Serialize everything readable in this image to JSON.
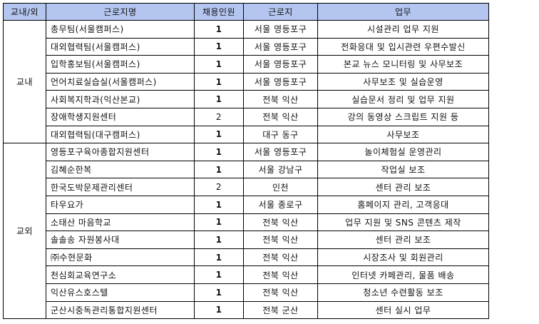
{
  "table": {
    "headers": [
      "교내/외",
      "근로지명",
      "채용인원",
      "근로지",
      "업무"
    ],
    "groups": [
      {
        "label": "교내",
        "rows": [
          {
            "name": "총무팀(서울캠퍼스)",
            "count": "1",
            "location": "서울 영등포구",
            "task": "시설관리 업무 지원"
          },
          {
            "name": "대외협력팀(서울캠퍼스)",
            "count": "1",
            "location": "서울 영등포구",
            "task": "전화응대 및 입시관련 우편수발신"
          },
          {
            "name": "입학홍보팀(서울캠퍼스)",
            "count": "1",
            "location": "서울 영등포구",
            "task": "본교 뉴스 모니터링 및 사무보조"
          },
          {
            "name": "언어치료실습실(서울캠퍼스)",
            "count": "1",
            "location": "서울 영등포구",
            "task": "사무보조 및 실습운영"
          },
          {
            "name": "사회복지학과(익산본교)",
            "count": "1",
            "location": "전북 익산",
            "task": "실습문서 정리 및 업무 지원"
          },
          {
            "name": "장애학생지원센터",
            "count": "2",
            "location": "전북 익산",
            "task": "강의 동영상 스크립트 지원 등"
          },
          {
            "name": "대외협력팀(대구캠퍼스)",
            "count": "1",
            "location": "대구 동구",
            "task": "사무보조"
          }
        ]
      },
      {
        "label": "교외",
        "rows": [
          {
            "name": "영등포구육아종합지원센터",
            "count": "1",
            "location": "서울 영등포구",
            "task": "놀이체험실 운영관리"
          },
          {
            "name": "김혜순한복",
            "count": "1",
            "location": "서울 강남구",
            "task": "작업실 보조"
          },
          {
            "name": "한국도박문제관리센터",
            "count": "2",
            "location": "인천",
            "task": "센터 관리 보조"
          },
          {
            "name": "타우요가",
            "count": "1",
            "location": "서울 종로구",
            "task": "홈페이지 관리, 고객응대"
          },
          {
            "name": "소태산 마음학교",
            "count": "1",
            "location": "전북 익산",
            "task": "업무 지원 및 SNS 콘텐츠 제작"
          },
          {
            "name": "솔솔송 자원봉사대",
            "count": "1",
            "location": "전북 익산",
            "task": "센터 관리 보조"
          },
          {
            "name": "㈜수현문화",
            "count": "1",
            "location": "전북 익산",
            "task": "시장조사 및 회원관리"
          },
          {
            "name": "천심회교육연구소",
            "count": "1",
            "location": "전북 익산",
            "task": "인터넷 카페관리, 물품 배송"
          },
          {
            "name": "익산유스호스텔",
            "count": "1",
            "location": "전북 익산",
            "task": "청소년 수련활동 보조"
          },
          {
            "name": "군산시중독관리통합지원센터",
            "count": "1",
            "location": "전북 군산",
            "task": "센터 실시 업무"
          }
        ]
      }
    ]
  },
  "colors": {
    "header_bg": "#b4c6f0",
    "border": "#000000"
  }
}
